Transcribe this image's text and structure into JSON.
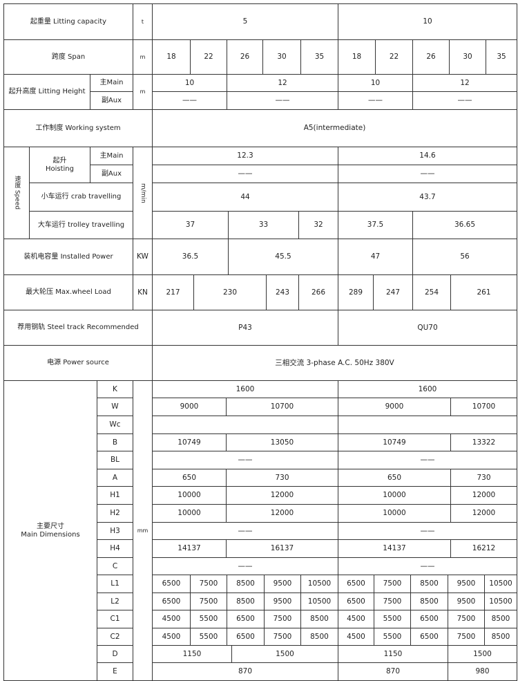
{
  "capacity": {
    "label": "起重量 Litting capacity",
    "unit": "t",
    "values": [
      "5",
      "10"
    ]
  },
  "span": {
    "label": "跨度 Span",
    "unit": "m",
    "values": [
      "18",
      "22",
      "26",
      "30",
      "35",
      "18",
      "22",
      "26",
      "30",
      "35"
    ]
  },
  "lifting_height": {
    "label": "起升高度 Litting Height",
    "unit": "m",
    "main_label": "主Main",
    "aux_label": "副Aux",
    "main": [
      "10",
      "12",
      "10",
      "12"
    ],
    "aux": [
      "——",
      "——",
      "——",
      "——"
    ]
  },
  "working_system": {
    "label": "工作制度 Working system",
    "value": "A5(intermediate)"
  },
  "speed": {
    "label": "速度 Speed",
    "unit": "m/min",
    "hoisting": {
      "label": "起升\nHoisting",
      "main_label": "主Main",
      "aux_label": "副Aux",
      "main": [
        "12.3",
        "14.6"
      ],
      "aux": [
        "——",
        "——"
      ]
    },
    "crab": {
      "label": "小车运行 crab travelling",
      "values": [
        "44",
        "43.7"
      ]
    },
    "trolley": {
      "label": "大车运行 trolley travelling",
      "values": [
        "37",
        "33",
        "32",
        "37.5",
        "36.65"
      ]
    }
  },
  "installed_power": {
    "label": "装机电容量 Installed Power",
    "unit": "KW",
    "values": [
      "36.5",
      "45.5",
      "47",
      "56"
    ]
  },
  "wheel_load": {
    "label": "最大轮压 Max.wheel Load",
    "unit": "KN",
    "values": [
      "217",
      "230",
      "243",
      "266",
      "289",
      "247",
      "254",
      "261"
    ]
  },
  "steel_track": {
    "label": "荐用钢轨 Steel track Recommended",
    "values": [
      "P43",
      "QU70"
    ]
  },
  "power_source": {
    "label": "电源 Power source",
    "value": "三相交流 3-phase A.C. 50Hz 380V"
  },
  "dimensions": {
    "label": "主要尺寸\nMain Dimensions",
    "unit": "mm",
    "rows": [
      {
        "sym": "K",
        "values": [
          "1600",
          "1600"
        ]
      },
      {
        "sym": "W",
        "values": [
          "9000",
          "10700",
          "9000",
          "10700"
        ]
      },
      {
        "sym": "Wc",
        "values": [
          "",
          ""
        ]
      },
      {
        "sym": "B",
        "values": [
          "10749",
          "13050",
          "10749",
          "13322"
        ]
      },
      {
        "sym": "BL",
        "values": [
          "——",
          "——"
        ]
      },
      {
        "sym": "A",
        "values": [
          "650",
          "730",
          "650",
          "730"
        ]
      },
      {
        "sym": "H1",
        "values": [
          "10000",
          "12000",
          "10000",
          "12000"
        ]
      },
      {
        "sym": "H2",
        "values": [
          "10000",
          "12000",
          "10000",
          "12000"
        ]
      },
      {
        "sym": "H3",
        "values": [
          "——",
          "——"
        ]
      },
      {
        "sym": "H4",
        "values": [
          "14137",
          "16137",
          "14137",
          "16212"
        ]
      },
      {
        "sym": "C",
        "values": [
          "——",
          "——"
        ]
      },
      {
        "sym": "L1",
        "values": [
          "6500",
          "7500",
          "8500",
          "9500",
          "10500",
          "6500",
          "7500",
          "8500",
          "9500",
          "10500"
        ]
      },
      {
        "sym": "L2",
        "values": [
          "6500",
          "7500",
          "8500",
          "9500",
          "10500",
          "6500",
          "7500",
          "8500",
          "9500",
          "10500"
        ]
      },
      {
        "sym": "C1",
        "values": [
          "4500",
          "5500",
          "6500",
          "7500",
          "8500",
          "4500",
          "5500",
          "6500",
          "7500",
          "8500"
        ]
      },
      {
        "sym": "C2",
        "values": [
          "4500",
          "5500",
          "6500",
          "7500",
          "8500",
          "4500",
          "5500",
          "6500",
          "7500",
          "8500"
        ]
      },
      {
        "sym": "D",
        "values": [
          "1150",
          "1500",
          "1150",
          "1500"
        ]
      },
      {
        "sym": "E",
        "values": [
          "870",
          "870",
          "980"
        ]
      }
    ]
  }
}
